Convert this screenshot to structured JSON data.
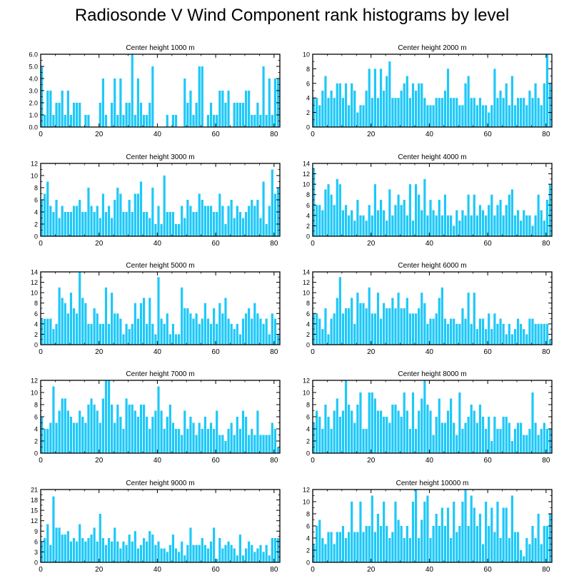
{
  "title": "Radiosonde V Wind Component rank histograms by level",
  "bar_color": "#1ec8f8",
  "chart_data": [
    {
      "type": "bar",
      "title": "Center height 1000 m",
      "xlim": [
        0,
        82
      ],
      "ylim": [
        0,
        6
      ],
      "xticks": [
        0,
        20,
        40,
        60,
        80
      ],
      "xtick_labels": [
        "0",
        "20",
        "40",
        "60",
        "80"
      ],
      "yticks": [
        0,
        1,
        2,
        3,
        4,
        5,
        6
      ],
      "ytick_labels": [
        "0.0",
        "1.0",
        "2.0",
        "3.0",
        "4.0",
        "5.0",
        "6.0"
      ],
      "values": [
        5,
        1,
        3,
        3,
        1,
        2,
        2,
        3,
        1,
        3,
        1,
        2,
        2,
        2,
        0,
        1,
        1,
        0,
        0,
        0,
        2,
        4,
        1,
        0,
        2,
        4,
        1,
        4,
        1,
        2,
        2,
        6,
        1,
        4,
        2,
        1,
        1,
        2,
        5,
        0,
        0,
        0,
        0,
        1,
        0,
        1,
        1,
        0,
        0,
        4,
        2,
        3,
        1,
        2,
        5,
        5,
        0,
        1,
        2,
        1,
        1,
        3,
        3,
        2,
        3,
        0,
        2,
        2,
        2,
        2,
        3,
        3,
        1,
        1,
        2,
        1,
        5,
        1,
        4,
        1,
        4,
        4
      ]
    },
    {
      "type": "bar",
      "title": "Center height 2000 m",
      "xlim": [
        0,
        82
      ],
      "ylim": [
        0,
        10
      ],
      "xticks": [
        0,
        20,
        40,
        60,
        80
      ],
      "xtick_labels": [
        "0",
        "20",
        "40",
        "60",
        "80"
      ],
      "yticks": [
        0,
        2,
        4,
        6,
        8,
        10
      ],
      "ytick_labels": [
        "0",
        "2",
        "4",
        "6",
        "8",
        "10"
      ],
      "values": [
        4,
        4,
        3,
        5,
        7,
        4,
        5,
        4,
        6,
        6,
        4,
        6,
        3,
        6,
        5,
        2,
        3,
        3,
        5,
        8,
        4,
        8,
        4,
        8,
        5,
        7,
        9,
        4,
        4,
        4,
        5,
        6,
        7,
        4,
        6,
        5,
        6,
        6,
        4,
        3,
        3,
        3,
        4,
        4,
        4,
        5,
        8,
        4,
        4,
        4,
        3,
        3,
        6,
        7,
        4,
        4,
        3,
        4,
        3,
        3,
        2,
        3,
        8,
        4,
        5,
        4,
        6,
        3,
        7,
        3,
        4,
        4,
        4,
        3,
        5,
        4,
        6,
        4,
        3,
        6,
        10,
        6
      ]
    },
    {
      "type": "bar",
      "title": "Center height 3000 m",
      "xlim": [
        0,
        82
      ],
      "ylim": [
        0,
        12
      ],
      "xticks": [
        0,
        20,
        40,
        60,
        80
      ],
      "xtick_labels": [
        "0",
        "20",
        "40",
        "60",
        "80"
      ],
      "yticks": [
        0,
        2,
        4,
        6,
        8,
        10,
        12
      ],
      "ytick_labels": [
        "0",
        "2",
        "4",
        "6",
        "8",
        "10",
        "12"
      ],
      "values": [
        6,
        7,
        9,
        5,
        4,
        6,
        3,
        5,
        4,
        4,
        4,
        5,
        5,
        6,
        4,
        4,
        8,
        5,
        4,
        5,
        3,
        7,
        4,
        5,
        3,
        6,
        8,
        7,
        4,
        4,
        6,
        4,
        7,
        7,
        9,
        4,
        4,
        3,
        8,
        2,
        5,
        2,
        10,
        4,
        4,
        4,
        2,
        2,
        5,
        3,
        6,
        5,
        4,
        4,
        7,
        6,
        5,
        5,
        5,
        4,
        4,
        7,
        5,
        2,
        5,
        6,
        3,
        5,
        4,
        3,
        4,
        5,
        6,
        5,
        6,
        3,
        9,
        2,
        5,
        11,
        7,
        8
      ]
    },
    {
      "type": "bar",
      "title": "Center height 4000 m",
      "xlim": [
        0,
        82
      ],
      "ylim": [
        0,
        14
      ],
      "xticks": [
        0,
        20,
        40,
        60,
        80
      ],
      "xtick_labels": [
        "0",
        "20",
        "40",
        "60",
        "80"
      ],
      "yticks": [
        0,
        2,
        4,
        6,
        8,
        10,
        12,
        14
      ],
      "ytick_labels": [
        "0",
        "2",
        "4",
        "6",
        "8",
        "10",
        "12",
        "14"
      ],
      "values": [
        13,
        6,
        6,
        5,
        9,
        10,
        8,
        6,
        11,
        10,
        5,
        6,
        4,
        5,
        3,
        7,
        4,
        4,
        3,
        6,
        4,
        10,
        5,
        7,
        5,
        3,
        9,
        4,
        6,
        8,
        6,
        7,
        4,
        10,
        3,
        10,
        8,
        5,
        11,
        4,
        7,
        5,
        4,
        7,
        4,
        8,
        4,
        4,
        2,
        5,
        3,
        5,
        4,
        8,
        4,
        8,
        4,
        6,
        5,
        4,
        6,
        8,
        4,
        6,
        7,
        4,
        6,
        8,
        9,
        4,
        5,
        3,
        5,
        4,
        4,
        2,
        4,
        8,
        5,
        3,
        7,
        10
      ]
    },
    {
      "type": "bar",
      "title": "Center height 5000 m",
      "xlim": [
        0,
        82
      ],
      "ylim": [
        0,
        14
      ],
      "xticks": [
        0,
        20,
        40,
        60,
        80
      ],
      "xtick_labels": [
        "0",
        "20",
        "40",
        "60",
        "80"
      ],
      "yticks": [
        0,
        2,
        4,
        6,
        8,
        10,
        12,
        14
      ],
      "ytick_labels": [
        "0",
        "2",
        "4",
        "6",
        "8",
        "10",
        "12",
        "14"
      ],
      "values": [
        5,
        5,
        5,
        5,
        3,
        4,
        11,
        9,
        8,
        6,
        10,
        7,
        6,
        14,
        9,
        8,
        4,
        4,
        7,
        6,
        4,
        4,
        11,
        4,
        10,
        6,
        6,
        5,
        2,
        4,
        3,
        4,
        8,
        5,
        8,
        9,
        4,
        9,
        4,
        2,
        13,
        5,
        4,
        6,
        2,
        4,
        2,
        2,
        11,
        7,
        7,
        6,
        5,
        6,
        4,
        5,
        8,
        5,
        4,
        7,
        4,
        8,
        6,
        9,
        5,
        4,
        3,
        4,
        2,
        5,
        6,
        7,
        5,
        8,
        6,
        5,
        4,
        5,
        2,
        6,
        5,
        2
      ]
    },
    {
      "type": "bar",
      "title": "Center height 6000 m",
      "xlim": [
        0,
        82
      ],
      "ylim": [
        0,
        14
      ],
      "xticks": [
        0,
        20,
        40,
        60,
        80
      ],
      "xtick_labels": [
        "0",
        "20",
        "40",
        "60",
        "80"
      ],
      "yticks": [
        0,
        2,
        4,
        6,
        8,
        10,
        12,
        14
      ],
      "ytick_labels": [
        "0",
        "2",
        "4",
        "6",
        "8",
        "10",
        "12",
        "14"
      ],
      "values": [
        6,
        6,
        5,
        3,
        7,
        2,
        5,
        6,
        9,
        13,
        6,
        7,
        7,
        9,
        4,
        10,
        8,
        8,
        7,
        11,
        6,
        6,
        10,
        5,
        8,
        7,
        7,
        9,
        7,
        10,
        7,
        7,
        9,
        6,
        6,
        6,
        7,
        10,
        8,
        4,
        5,
        5,
        6,
        9,
        11,
        5,
        4,
        5,
        5,
        4,
        4,
        7,
        5,
        10,
        4,
        10,
        3,
        5,
        5,
        3,
        6,
        3,
        6,
        4,
        5,
        4,
        2,
        4,
        2,
        3,
        5,
        4,
        3,
        2,
        5,
        5,
        4,
        4,
        4,
        4,
        4,
        1
      ]
    },
    {
      "type": "bar",
      "title": "Center height 7000 m",
      "xlim": [
        0,
        82
      ],
      "ylim": [
        0,
        12
      ],
      "xticks": [
        0,
        20,
        40,
        60,
        80
      ],
      "xtick_labels": [
        "0",
        "20",
        "40",
        "60",
        "80"
      ],
      "yticks": [
        0,
        2,
        4,
        6,
        8,
        10,
        12
      ],
      "ytick_labels": [
        "0",
        "2",
        "4",
        "6",
        "8",
        "10",
        "12"
      ],
      "values": [
        6,
        4,
        4,
        5,
        11,
        5,
        7,
        9,
        9,
        7,
        6,
        5,
        5,
        7,
        6,
        5,
        8,
        9,
        8,
        7,
        5,
        9,
        12,
        12,
        8,
        5,
        8,
        6,
        4,
        9,
        8,
        8,
        7,
        6,
        8,
        8,
        6,
        4,
        6,
        7,
        11,
        7,
        4,
        6,
        8,
        5,
        4,
        4,
        3,
        7,
        4,
        6,
        5,
        3,
        5,
        4,
        6,
        4,
        5,
        4,
        7,
        3,
        3,
        2,
        4,
        5,
        3,
        6,
        4,
        7,
        6,
        3,
        4,
        3,
        7,
        3,
        3,
        3,
        3,
        5,
        4,
        1
      ]
    },
    {
      "type": "bar",
      "title": "Center height 8000 m",
      "xlim": [
        0,
        82
      ],
      "ylim": [
        0,
        12
      ],
      "xticks": [
        0,
        20,
        40,
        60,
        80
      ],
      "xtick_labels": [
        "0",
        "20",
        "40",
        "60",
        "80"
      ],
      "yticks": [
        0,
        2,
        4,
        6,
        8,
        10,
        12
      ],
      "ytick_labels": [
        "0",
        "2",
        "4",
        "6",
        "8",
        "10",
        "12"
      ],
      "values": [
        5,
        7,
        6,
        4,
        8,
        6,
        4,
        7,
        9,
        6,
        7,
        12,
        8,
        7,
        5,
        8,
        10,
        4,
        4,
        10,
        10,
        9,
        7,
        7,
        6,
        6,
        5,
        8,
        8,
        7,
        6,
        10,
        7,
        4,
        10,
        4,
        7,
        9,
        12,
        8,
        7,
        3,
        6,
        9,
        5,
        5,
        7,
        9,
        5,
        3,
        10,
        4,
        5,
        6,
        8,
        7,
        5,
        8,
        6,
        4,
        6,
        2,
        6,
        4,
        4,
        6,
        6,
        5,
        2,
        4,
        5,
        5,
        3,
        3,
        4,
        10,
        5,
        3,
        4,
        5,
        4,
        4
      ]
    },
    {
      "type": "bar",
      "title": "Center height 9000 m",
      "xlim": [
        0,
        82
      ],
      "ylim": [
        0,
        21
      ],
      "xticks": [
        0,
        20,
        40,
        60,
        80
      ],
      "xtick_labels": [
        "0",
        "20",
        "40",
        "60",
        "80"
      ],
      "yticks": [
        0,
        3,
        6,
        9,
        12,
        15,
        18,
        21
      ],
      "ytick_labels": [
        "0",
        "3",
        "6",
        "9",
        "12",
        "15",
        "18",
        "21"
      ],
      "values": [
        6,
        7,
        11,
        5,
        19,
        10,
        10,
        8,
        8,
        9,
        6,
        7,
        6,
        11,
        7,
        6,
        7,
        8,
        10,
        6,
        14,
        7,
        5,
        7,
        6,
        10,
        6,
        4,
        6,
        5,
        8,
        6,
        9,
        4,
        5,
        7,
        6,
        9,
        8,
        5,
        6,
        4,
        4,
        3,
        5,
        8,
        4,
        3,
        6,
        2,
        5,
        10,
        5,
        5,
        5,
        7,
        5,
        4,
        6,
        10,
        1,
        7,
        4,
        5,
        6,
        5,
        4,
        2,
        8,
        2,
        4,
        6,
        5,
        3,
        4,
        5,
        3,
        5,
        2,
        7,
        7,
        7
      ]
    },
    {
      "type": "bar",
      "title": "Center height 10000 m",
      "xlim": [
        0,
        82
      ],
      "ylim": [
        0,
        12
      ],
      "xticks": [
        0,
        20,
        40,
        60,
        80
      ],
      "xtick_labels": [
        "0",
        "20",
        "40",
        "60",
        "80"
      ],
      "yticks": [
        0,
        2,
        4,
        6,
        8,
        10,
        12
      ],
      "ytick_labels": [
        "0",
        "2",
        "4",
        "6",
        "8",
        "10",
        "12"
      ],
      "values": [
        3,
        6,
        7,
        4,
        3,
        5,
        5,
        3,
        5,
        5,
        6,
        4,
        5,
        10,
        5,
        5,
        10,
        5,
        6,
        6,
        11,
        5,
        8,
        6,
        10,
        6,
        4,
        5,
        10,
        7,
        6,
        4,
        6,
        4,
        10,
        12,
        4,
        7,
        10,
        11,
        4,
        6,
        8,
        6,
        9,
        6,
        9,
        4,
        10,
        5,
        6,
        10,
        12,
        6,
        11,
        9,
        6,
        8,
        3,
        10,
        6,
        9,
        5,
        10,
        4,
        9,
        9,
        4,
        11,
        5,
        5,
        2,
        1,
        4,
        3,
        6,
        4,
        8,
        3,
        6,
        6,
        8
      ]
    }
  ]
}
